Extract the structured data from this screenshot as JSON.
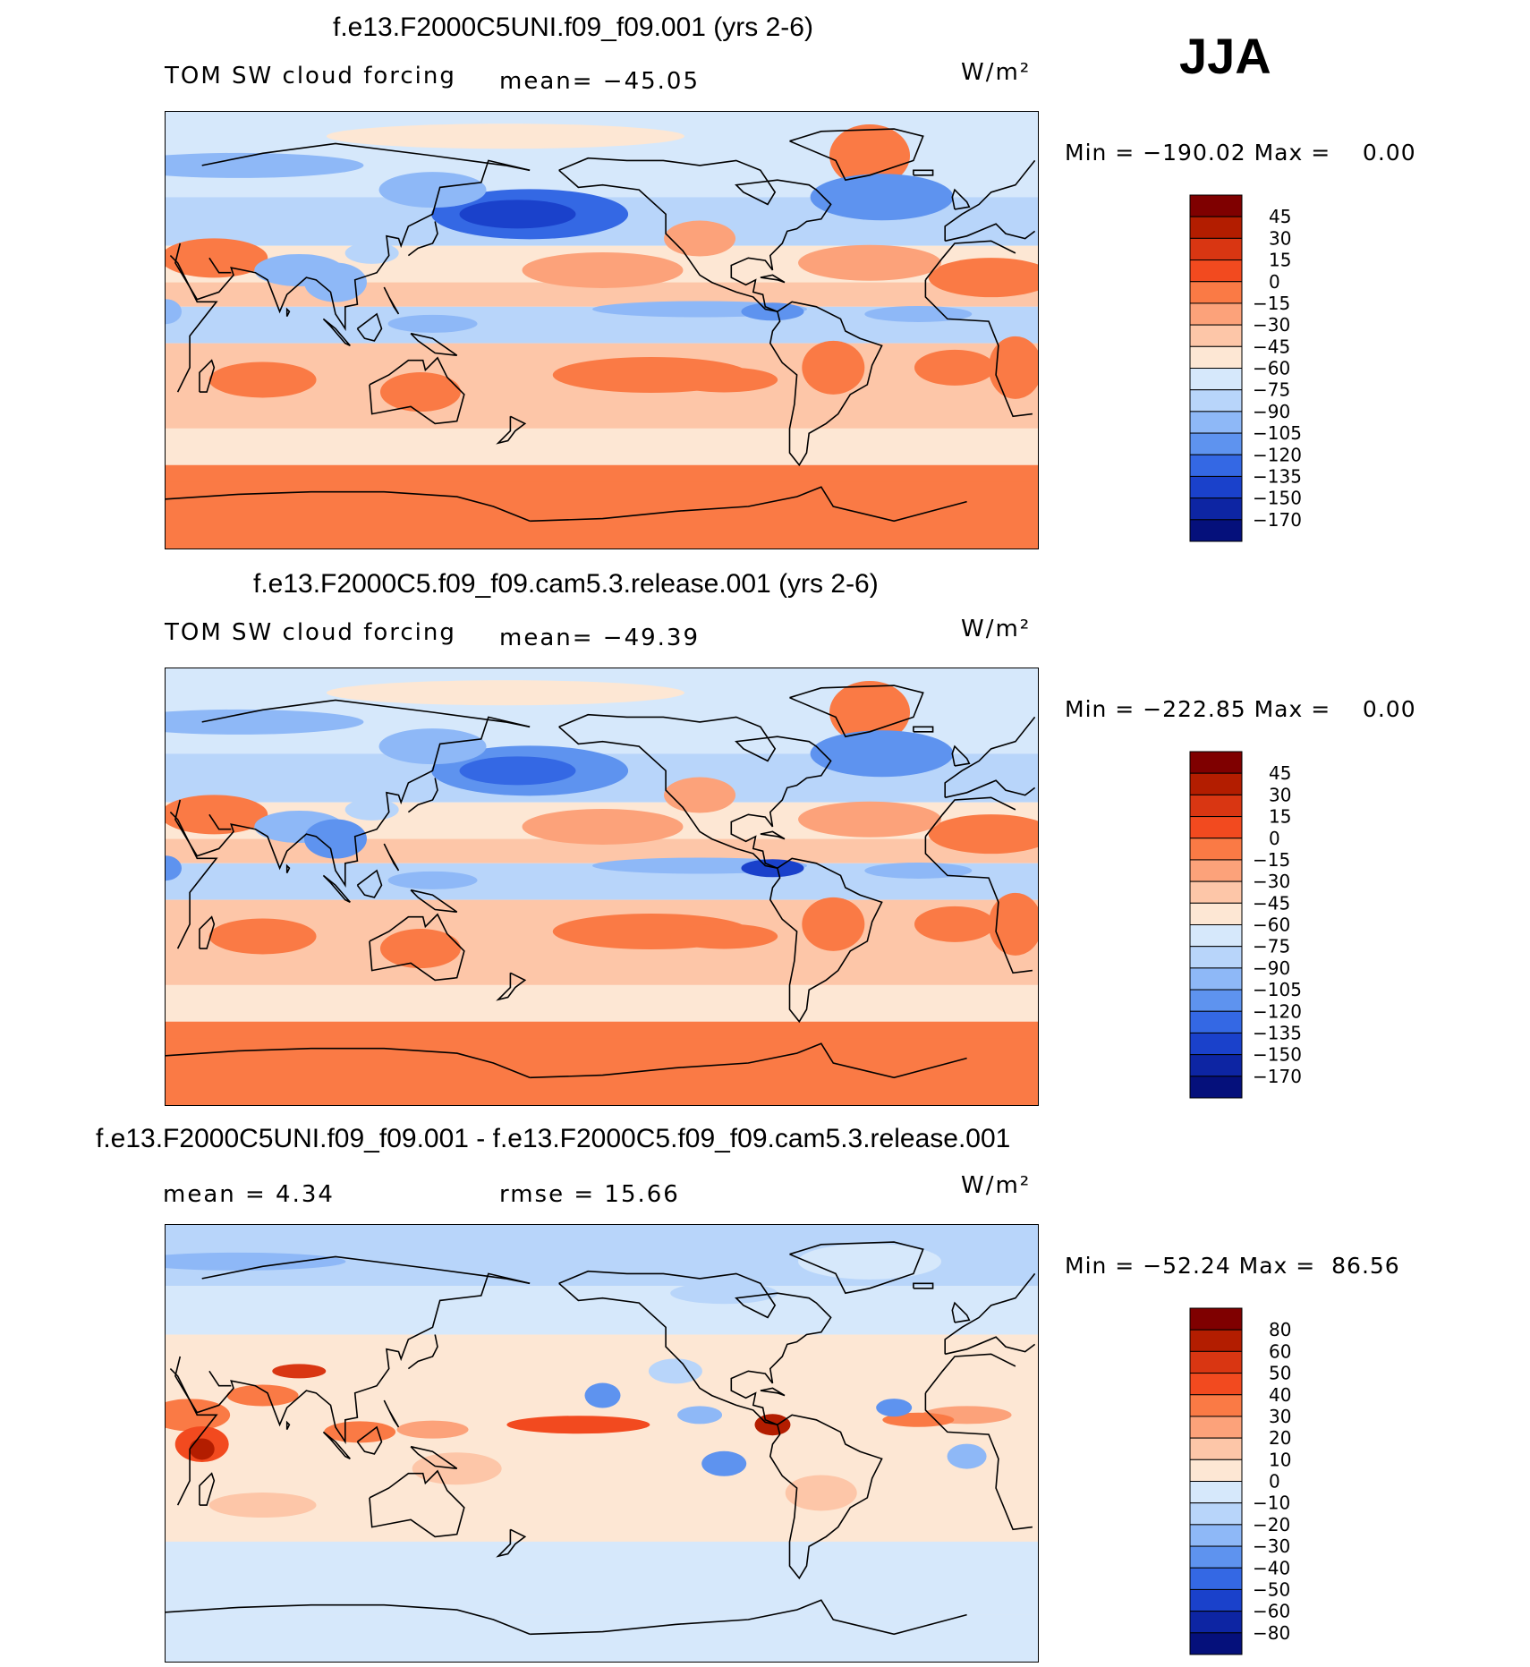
{
  "season": "JJA",
  "panels": [
    {
      "title": "f.e13.F2000C5UNI.f09_f09.001 (yrs 2-6)",
      "left_label": "TOM SW cloud forcing",
      "center_label": "mean= −45.05",
      "units": "W/m²",
      "minmax": "Min = −190.02 Max =    0.00",
      "kind": "field",
      "colorbar": {
        "labels": [
          "45",
          "30",
          "15",
          "0",
          "−15",
          "−30",
          "−45",
          "−60",
          "−75",
          "−90",
          "−105",
          "−120",
          "−135",
          "−150",
          "−170"
        ],
        "colors": [
          "#7f0000",
          "#b31d00",
          "#d93612",
          "#f24a1f",
          "#fa7a45",
          "#fca27a",
          "#fdc6a8",
          "#fde7d4",
          "#d6e8fb",
          "#b8d5fa",
          "#8eb8f7",
          "#5e93ef",
          "#3468e4",
          "#1a41cb",
          "#0d25a3",
          "#05107b"
        ]
      }
    },
    {
      "title": "f.e13.F2000C5.f09_f09.cam5.3.release.001 (yrs 2-6)",
      "left_label": "TOM SW cloud forcing",
      "center_label": "mean= −49.39",
      "units": "W/m²",
      "minmax": "Min = −222.85 Max =    0.00",
      "kind": "field",
      "colorbar": {
        "labels": [
          "45",
          "30",
          "15",
          "0",
          "−15",
          "−30",
          "−45",
          "−60",
          "−75",
          "−90",
          "−105",
          "−120",
          "−135",
          "−150",
          "−170"
        ],
        "colors": [
          "#7f0000",
          "#b31d00",
          "#d93612",
          "#f24a1f",
          "#fa7a45",
          "#fca27a",
          "#fdc6a8",
          "#fde7d4",
          "#d6e8fb",
          "#b8d5fa",
          "#8eb8f7",
          "#5e93ef",
          "#3468e4",
          "#1a41cb",
          "#0d25a3",
          "#05107b"
        ]
      }
    },
    {
      "title": "f.e13.F2000C5UNI.f09_f09.001 - f.e13.F2000C5.f09_f09.cam5.3.release.001",
      "left_label": "mean =    4.34",
      "center_label": "rmse =   15.66",
      "units": "W/m²",
      "minmax": "Min = −52.24 Max =  86.56",
      "kind": "diff",
      "colorbar": {
        "labels": [
          "80",
          "60",
          "50",
          "40",
          "30",
          "20",
          "10",
          "0",
          "−10",
          "−20",
          "−30",
          "−40",
          "−50",
          "−60",
          "−80"
        ],
        "colors": [
          "#7f0000",
          "#b31d00",
          "#d93612",
          "#f24a1f",
          "#fa7a45",
          "#fca27a",
          "#fdc6a8",
          "#fde7d4",
          "#d6e8fb",
          "#b8d5fa",
          "#8eb8f7",
          "#5e93ef",
          "#3468e4",
          "#1a41cb",
          "#0d25a3",
          "#05107b"
        ]
      }
    }
  ]
}
